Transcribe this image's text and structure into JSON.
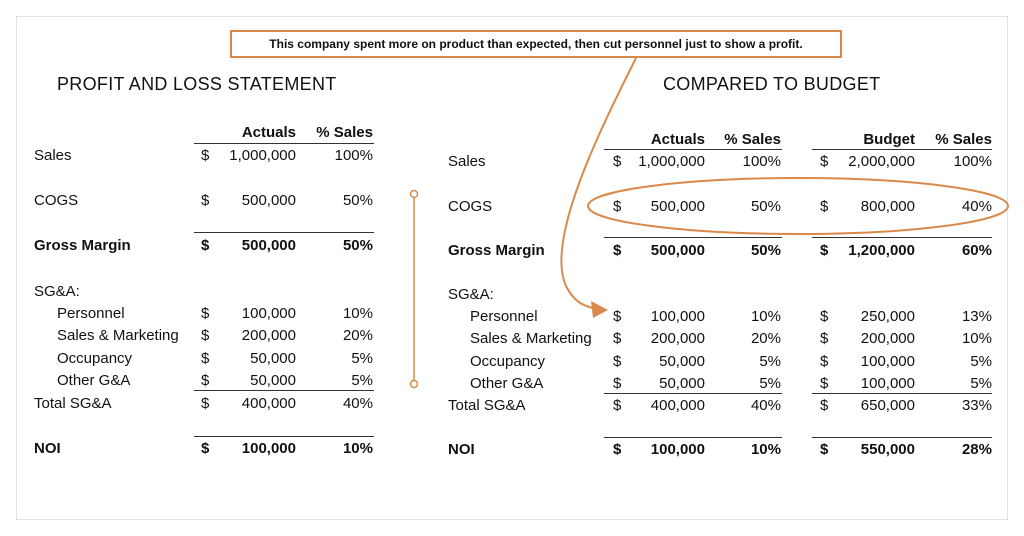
{
  "callout": "This company spent more on product than expected, then cut personnel just to show a profit.",
  "left": {
    "title": "PROFIT AND LOSS STATEMENT",
    "col_actuals": "Actuals",
    "col_pct": "% Sales",
    "rows": {
      "sales": {
        "label": "Sales",
        "cur": "$",
        "val": "1,000,000",
        "pct": "100%"
      },
      "cogs": {
        "label": "COGS",
        "cur": "$",
        "val": "500,000",
        "pct": "50%"
      },
      "gross": {
        "label": "Gross Margin",
        "cur": "$",
        "val": "500,000",
        "pct": "50%"
      },
      "sga_head": {
        "label": "SG&A:"
      },
      "personnel": {
        "label": "Personnel",
        "cur": "$",
        "val": "100,000",
        "pct": "10%"
      },
      "sales_mkt": {
        "label": "Sales & Marketing",
        "cur": "$",
        "val": "200,000",
        "pct": "20%"
      },
      "occupancy": {
        "label": "Occupancy",
        "cur": "$",
        "val": "50,000",
        "pct": "5%"
      },
      "other": {
        "label": "Other G&A",
        "cur": "$",
        "val": "50,000",
        "pct": "5%"
      },
      "total": {
        "label": "Total SG&A",
        "cur": "$",
        "val": "400,000",
        "pct": "40%"
      },
      "noi": {
        "label": "NOI",
        "cur": "$",
        "val": "100,000",
        "pct": "10%"
      }
    }
  },
  "right": {
    "title": "COMPARED TO BUDGET",
    "col_actuals": "Actuals",
    "col_pct": "% Sales",
    "col_budget": "Budget",
    "col_bpct": "% Sales",
    "rows": {
      "sales": {
        "label": "Sales",
        "cur": "$",
        "val": "1,000,000",
        "pct": "100%",
        "bcur": "$",
        "bval": "2,000,000",
        "bpct": "100%"
      },
      "cogs": {
        "label": "COGS",
        "cur": "$",
        "val": "500,000",
        "pct": "50%",
        "bcur": "$",
        "bval": "800,000",
        "bpct": "40%"
      },
      "gross": {
        "label": "Gross Margin",
        "cur": "$",
        "val": "500,000",
        "pct": "50%",
        "bcur": "$",
        "bval": "1,200,000",
        "bpct": "60%"
      },
      "sga_head": {
        "label": "SG&A:"
      },
      "personnel": {
        "label": "Personnel",
        "cur": "$",
        "val": "100,000",
        "pct": "10%",
        "bcur": "$",
        "bval": "250,000",
        "bpct": "13%"
      },
      "sales_mkt": {
        "label": "Sales & Marketing",
        "cur": "$",
        "val": "200,000",
        "pct": "20%",
        "bcur": "$",
        "bval": "200,000",
        "bpct": "10%"
      },
      "occupancy": {
        "label": "Occupancy",
        "cur": "$",
        "val": "50,000",
        "pct": "5%",
        "bcur": "$",
        "bval": "100,000",
        "bpct": "5%"
      },
      "other": {
        "label": "Other G&A",
        "cur": "$",
        "val": "50,000",
        "pct": "5%",
        "bcur": "$",
        "bval": "100,000",
        "bpct": "5%"
      },
      "total": {
        "label": "Total SG&A",
        "cur": "$",
        "val": "400,000",
        "pct": "40%",
        "bcur": "$",
        "bval": "650,000",
        "bpct": "33%"
      },
      "noi": {
        "label": "NOI",
        "cur": "$",
        "val": "100,000",
        "pct": "10%",
        "bcur": "$",
        "bval": "550,000",
        "bpct": "28%"
      }
    }
  },
  "colors": {
    "accent": "#d98a4b",
    "text": "#111111",
    "rule": "#333333"
  }
}
